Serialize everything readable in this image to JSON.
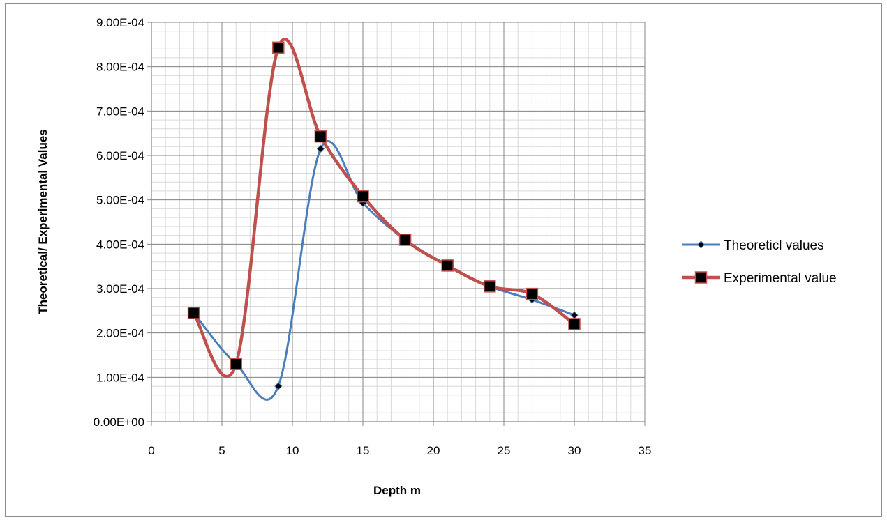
{
  "chart_data": {
    "type": "scatter",
    "xlabel": "Depth m",
    "ylabel": "Theoretical/ Experimental Values",
    "xlim": [
      0,
      35
    ],
    "ylim": [
      0,
      0.0009
    ],
    "x_ticks": [
      0,
      5,
      10,
      15,
      20,
      25,
      30,
      35
    ],
    "x_tick_labels": [
      "0",
      "5",
      "10",
      "15",
      "20",
      "25",
      "30",
      "35"
    ],
    "y_ticks": [
      0,
      0.0001,
      0.0002,
      0.0003,
      0.0004,
      0.0005,
      0.0006,
      0.0007,
      0.0008,
      0.0009
    ],
    "y_tick_labels": [
      "0.00E+00",
      "1.00E-04",
      "2.00E-04",
      "3.00E-04",
      "4.00E-04",
      "5.00E-04",
      "6.00E-04",
      "7.00E-04",
      "8.00E-04",
      "9.00E-04"
    ],
    "grid": true,
    "legend_position": "right",
    "smoothed_lines": true,
    "series": [
      {
        "name": "Theoreticl values",
        "color": "#4a7ebb",
        "marker": "diamond",
        "x": [
          3,
          6,
          9,
          12,
          15,
          18,
          21,
          24,
          27,
          30
        ],
        "y": [
          0.000245,
          0.00013,
          8e-05,
          0.000615,
          0.000493,
          0.00041,
          0.000352,
          0.000305,
          0.000275,
          0.00024
        ]
      },
      {
        "name": "Experimental value",
        "color": "#c0504d",
        "marker": "square",
        "x": [
          3,
          6,
          9,
          12,
          15,
          18,
          21,
          24,
          27,
          30
        ],
        "y": [
          0.000245,
          0.00013,
          0.000843,
          0.000643,
          0.000508,
          0.00041,
          0.000352,
          0.000305,
          0.000288,
          0.00022
        ]
      }
    ]
  }
}
